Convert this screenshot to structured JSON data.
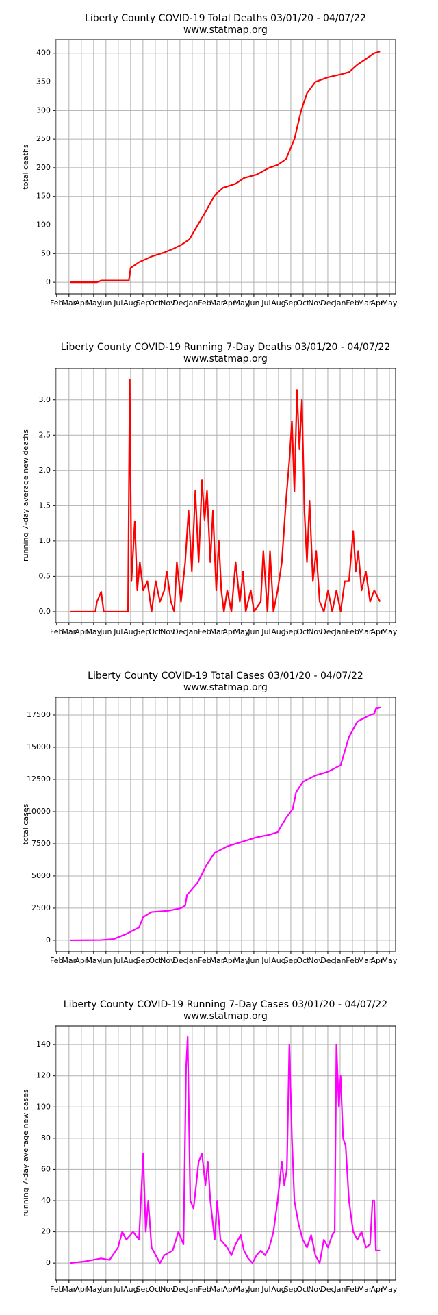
{
  "chart_data": [
    {
      "type": "line",
      "title": "Liberty County COVID-19 Total Deaths 03/01/20 - 04/07/22",
      "subtitle": "www.statmap.org",
      "y_label": "total deaths",
      "color": "#ff0000",
      "grid": true,
      "xlim": [
        -0.1,
        27.5
      ],
      "ylim": [
        -20.2,
        423.6
      ],
      "yticks": [
        0,
        50,
        100,
        150,
        200,
        250,
        300,
        350,
        400
      ],
      "xticks": [
        {
          "value": 0,
          "label": "Feb"
        },
        {
          "value": 1,
          "label": "Mar"
        },
        {
          "value": 2,
          "label": "Apr"
        },
        {
          "value": 3,
          "label": "May"
        },
        {
          "value": 4,
          "label": "Jun"
        },
        {
          "value": 5,
          "label": "Jul"
        },
        {
          "value": 6,
          "label": "Aug"
        },
        {
          "value": 7,
          "label": "Sep"
        },
        {
          "value": 8,
          "label": "Oct"
        },
        {
          "value": 9,
          "label": "Nov"
        },
        {
          "value": 10,
          "label": "Dec"
        },
        {
          "value": 11,
          "label": "Jan"
        },
        {
          "value": 12,
          "label": "Feb"
        },
        {
          "value": 13,
          "label": "Mar"
        },
        {
          "value": 14,
          "label": "Apr"
        },
        {
          "value": 15,
          "label": "May"
        },
        {
          "value": 16,
          "label": "Jun"
        },
        {
          "value": 17,
          "label": "Jul"
        },
        {
          "value": 18,
          "label": "Aug"
        },
        {
          "value": 19,
          "label": "Sep"
        },
        {
          "value": 20,
          "label": "Oct"
        },
        {
          "value": 21,
          "label": "Nov"
        },
        {
          "value": 22,
          "label": "Dec"
        },
        {
          "value": 23,
          "label": "Jan"
        },
        {
          "value": 24,
          "label": "Feb"
        },
        {
          "value": 25,
          "label": "Mar"
        },
        {
          "value": 26,
          "label": "Apr"
        },
        {
          "value": 27,
          "label": "May"
        }
      ],
      "x": [
        1.09,
        3.27,
        3.61,
        5.66,
        5.86,
        6.0,
        6.68,
        7.7,
        8.73,
        9.41,
        10.09,
        10.77,
        11.45,
        12.13,
        12.82,
        13.5,
        14.52,
        15.2,
        16.22,
        17.25,
        17.93,
        18.61,
        19.29,
        19.84,
        20.31,
        20.99,
        22.02,
        23.04,
        23.72,
        24.4,
        25.09,
        25.77,
        26.24
      ],
      "values": [
        0,
        0,
        3,
        3,
        3,
        25,
        35,
        45,
        52,
        58,
        65,
        75,
        100,
        125,
        152,
        165,
        172,
        182,
        188,
        200,
        205,
        215,
        250,
        300,
        330,
        350,
        358,
        363,
        367,
        380,
        390,
        400,
        403
      ]
    },
    {
      "type": "line",
      "title": "Liberty County COVID-19 Running 7-Day Deaths 03/01/20 - 04/07/22",
      "subtitle": "www.statmap.org",
      "y_label": "running 7-day average new deaths",
      "color": "#ff0000",
      "grid": true,
      "xlim": [
        -0.1,
        27.5
      ],
      "ylim": [
        -0.156,
        3.444
      ],
      "yticks": [
        {
          "value": 0,
          "label": "0.0"
        },
        0.5,
        {
          "value": 1,
          "label": "1.0"
        },
        1.5,
        {
          "value": 2,
          "label": "2.0"
        },
        2.5,
        {
          "value": 3,
          "label": "3.0"
        }
      ],
      "xticks": [
        {
          "value": 0,
          "label": "Feb"
        },
        {
          "value": 1,
          "label": "Mar"
        },
        {
          "value": 2,
          "label": "Apr"
        },
        {
          "value": 3,
          "label": "May"
        },
        {
          "value": 4,
          "label": "Jun"
        },
        {
          "value": 5,
          "label": "Jul"
        },
        {
          "value": 6,
          "label": "Aug"
        },
        {
          "value": 7,
          "label": "Sep"
        },
        {
          "value": 8,
          "label": "Oct"
        },
        {
          "value": 9,
          "label": "Nov"
        },
        {
          "value": 10,
          "label": "Dec"
        },
        {
          "value": 11,
          "label": "Jan"
        },
        {
          "value": 12,
          "label": "Feb"
        },
        {
          "value": 13,
          "label": "Mar"
        },
        {
          "value": 14,
          "label": "Apr"
        },
        {
          "value": 15,
          "label": "May"
        },
        {
          "value": 16,
          "label": "Jun"
        },
        {
          "value": 17,
          "label": "Jul"
        },
        {
          "value": 18,
          "label": "Aug"
        },
        {
          "value": 19,
          "label": "Sep"
        },
        {
          "value": 20,
          "label": "Oct"
        },
        {
          "value": 21,
          "label": "Nov"
        },
        {
          "value": 22,
          "label": "Dec"
        },
        {
          "value": 23,
          "label": "Jan"
        },
        {
          "value": 24,
          "label": "Feb"
        },
        {
          "value": 25,
          "label": "Mar"
        },
        {
          "value": 26,
          "label": "Apr"
        },
        {
          "value": 27,
          "label": "May"
        }
      ],
      "x": [
        1.09,
        3.14,
        3.27,
        3.61,
        3.82,
        5.79,
        5.93,
        6.07,
        6.34,
        6.54,
        6.75,
        7.02,
        7.36,
        7.7,
        8.04,
        8.38,
        8.73,
        8.93,
        9.27,
        9.54,
        9.75,
        10.09,
        10.43,
        10.7,
        10.97,
        11.25,
        11.52,
        11.79,
        12.0,
        12.2,
        12.47,
        12.68,
        12.95,
        13.16,
        13.36,
        13.57,
        13.84,
        14.18,
        14.52,
        14.86,
        15.13,
        15.34,
        15.75,
        16.02,
        16.56,
        16.77,
        17.11,
        17.31,
        17.59,
        17.93,
        18.27,
        18.61,
        18.88,
        19.09,
        19.29,
        19.5,
        19.7,
        19.9,
        20.11,
        20.31,
        20.52,
        20.79,
        21.06,
        21.34,
        21.68,
        22.02,
        22.36,
        22.7,
        23.04,
        23.38,
        23.72,
        24.06,
        24.27,
        24.47,
        24.74,
        25.09,
        25.43,
        25.77,
        26.24
      ],
      "values": [
        0,
        0,
        0.14,
        0.28,
        0,
        0,
        3.28,
        0.43,
        1.28,
        0.3,
        0.7,
        0.3,
        0.43,
        0,
        0.43,
        0.14,
        0.3,
        0.57,
        0.14,
        0,
        0.7,
        0.14,
        0.7,
        1.43,
        0.57,
        1.71,
        0.7,
        1.86,
        1.3,
        1.71,
        0.7,
        1.43,
        0.3,
        1.0,
        0.3,
        0,
        0.3,
        0,
        0.7,
        0.14,
        0.57,
        0,
        0.3,
        0,
        0.14,
        0.86,
        0,
        0.86,
        0,
        0.3,
        0.7,
        1.57,
        2.14,
        2.7,
        1.7,
        3.14,
        2.3,
        3.0,
        1.4,
        0.7,
        1.57,
        0.43,
        0.86,
        0.14,
        0,
        0.3,
        0,
        0.3,
        0,
        0.43,
        0.43,
        1.14,
        0.57,
        0.86,
        0.3,
        0.57,
        0.14,
        0.3,
        0.14
      ]
    },
    {
      "type": "line",
      "title": "Liberty County COVID-19 Total Cases 03/01/20 - 04/07/22",
      "subtitle": "www.statmap.org",
      "y_label": "total cases",
      "color": "#ff00ff",
      "grid": true,
      "xlim": [
        -0.1,
        27.5
      ],
      "ylim": [
        -855,
        18882
      ],
      "yticks": [
        0,
        2500,
        5000,
        7500,
        10000,
        12500,
        15000,
        17500
      ],
      "xticks": [
        {
          "value": 0,
          "label": "Feb"
        },
        {
          "value": 1,
          "label": "Mar"
        },
        {
          "value": 2,
          "label": "Apr"
        },
        {
          "value": 3,
          "label": "May"
        },
        {
          "value": 4,
          "label": "Jun"
        },
        {
          "value": 5,
          "label": "Jul"
        },
        {
          "value": 6,
          "label": "Aug"
        },
        {
          "value": 7,
          "label": "Sep"
        },
        {
          "value": 8,
          "label": "Oct"
        },
        {
          "value": 9,
          "label": "Nov"
        },
        {
          "value": 10,
          "label": "Dec"
        },
        {
          "value": 11,
          "label": "Jan"
        },
        {
          "value": 12,
          "label": "Feb"
        },
        {
          "value": 13,
          "label": "Mar"
        },
        {
          "value": 14,
          "label": "Apr"
        },
        {
          "value": 15,
          "label": "May"
        },
        {
          "value": 16,
          "label": "Jun"
        },
        {
          "value": 17,
          "label": "Jul"
        },
        {
          "value": 18,
          "label": "Aug"
        },
        {
          "value": 19,
          "label": "Sep"
        },
        {
          "value": 20,
          "label": "Oct"
        },
        {
          "value": 21,
          "label": "Nov"
        },
        {
          "value": 22,
          "label": "Dec"
        },
        {
          "value": 23,
          "label": "Jan"
        },
        {
          "value": 24,
          "label": "Feb"
        },
        {
          "value": 25,
          "label": "Mar"
        },
        {
          "value": 26,
          "label": "Apr"
        },
        {
          "value": 27,
          "label": "May"
        }
      ],
      "x": [
        1.09,
        3.61,
        4.64,
        5.66,
        6.68,
        7.02,
        7.7,
        9.07,
        10.09,
        10.43,
        10.57,
        11.45,
        12.13,
        12.82,
        13.84,
        15.2,
        16.22,
        17.25,
        17.93,
        18.61,
        19.15,
        19.43,
        19.97,
        20.99,
        22.02,
        23.04,
        23.72,
        24.4,
        25.43,
        25.77,
        25.9,
        26.31
      ],
      "values": [
        0,
        20,
        100,
        500,
        1000,
        1800,
        2200,
        2300,
        2500,
        2700,
        3500,
        4500,
        5800,
        6800,
        7300,
        7700,
        8000,
        8200,
        8400,
        9500,
        10200,
        11500,
        12300,
        12800,
        13100,
        13600,
        15800,
        17000,
        17500,
        17600,
        18000,
        18100
      ]
    },
    {
      "type": "line",
      "title": "Liberty County COVID-19 Running 7-Day Cases 03/01/20 - 04/07/22",
      "subtitle": "www.statmap.org",
      "y_label": "running 7-day average new cases",
      "color": "#ff00ff",
      "grid": true,
      "xlim": [
        -0.1,
        27.5
      ],
      "ylim": [
        -10.9,
        151.9
      ],
      "yticks": [
        0,
        20,
        40,
        60,
        80,
        100,
        120,
        140
      ],
      "xticks": [
        {
          "value": 0,
          "label": "Feb"
        },
        {
          "value": 1,
          "label": "Mar"
        },
        {
          "value": 2,
          "label": "Apr"
        },
        {
          "value": 3,
          "label": "May"
        },
        {
          "value": 4,
          "label": "Jun"
        },
        {
          "value": 5,
          "label": "Jul"
        },
        {
          "value": 6,
          "label": "Aug"
        },
        {
          "value": 7,
          "label": "Sep"
        },
        {
          "value": 8,
          "label": "Oct"
        },
        {
          "value": 9,
          "label": "Nov"
        },
        {
          "value": 10,
          "label": "Dec"
        },
        {
          "value": 11,
          "label": "Jan"
        },
        {
          "value": 12,
          "label": "Feb"
        },
        {
          "value": 13,
          "label": "Mar"
        },
        {
          "value": 14,
          "label": "Apr"
        },
        {
          "value": 15,
          "label": "May"
        },
        {
          "value": 16,
          "label": "Jun"
        },
        {
          "value": 17,
          "label": "Jul"
        },
        {
          "value": 18,
          "label": "Aug"
        },
        {
          "value": 19,
          "label": "Sep"
        },
        {
          "value": 20,
          "label": "Oct"
        },
        {
          "value": 21,
          "label": "Nov"
        },
        {
          "value": 22,
          "label": "Dec"
        },
        {
          "value": 23,
          "label": "Jan"
        },
        {
          "value": 24,
          "label": "Feb"
        },
        {
          "value": 25,
          "label": "Mar"
        },
        {
          "value": 26,
          "label": "Apr"
        },
        {
          "value": 27,
          "label": "May"
        }
      ],
      "x": [
        1.09,
        2.25,
        2.93,
        3.61,
        4.29,
        4.98,
        5.32,
        5.66,
        6.2,
        6.68,
        7.02,
        7.23,
        7.43,
        7.7,
        8.04,
        8.38,
        8.73,
        9.41,
        9.88,
        10.29,
        10.5,
        10.63,
        10.84,
        11.11,
        11.52,
        11.79,
        12.07,
        12.27,
        12.47,
        12.82,
        13.02,
        13.29,
        13.84,
        14.18,
        14.52,
        14.93,
        15.2,
        15.54,
        15.88,
        16.22,
        16.56,
        16.91,
        17.25,
        17.59,
        17.93,
        18.27,
        18.47,
        18.68,
        18.88,
        19.09,
        19.29,
        19.63,
        19.97,
        20.31,
        20.65,
        20.99,
        21.34,
        21.68,
        22.02,
        22.36,
        22.56,
        22.7,
        22.9,
        23.04,
        23.24,
        23.45,
        23.72,
        24.06,
        24.4,
        24.74,
        25.09,
        25.43,
        25.63,
        25.77,
        25.9,
        26.24
      ],
      "values": [
        0,
        1,
        2,
        3,
        2,
        10,
        20,
        15,
        20,
        15,
        70,
        20,
        40,
        10,
        5,
        0,
        5,
        8,
        20,
        12,
        125,
        145,
        40,
        35,
        65,
        70,
        50,
        65,
        40,
        15,
        40,
        15,
        10,
        5,
        12,
        18,
        8,
        3,
        0,
        5,
        8,
        5,
        10,
        20,
        40,
        65,
        50,
        60,
        140,
        80,
        40,
        25,
        15,
        10,
        18,
        5,
        0,
        15,
        10,
        18,
        20,
        140,
        100,
        120,
        80,
        75,
        40,
        20,
        15,
        20,
        10,
        12,
        40,
        40,
        8,
        8
      ]
    }
  ]
}
